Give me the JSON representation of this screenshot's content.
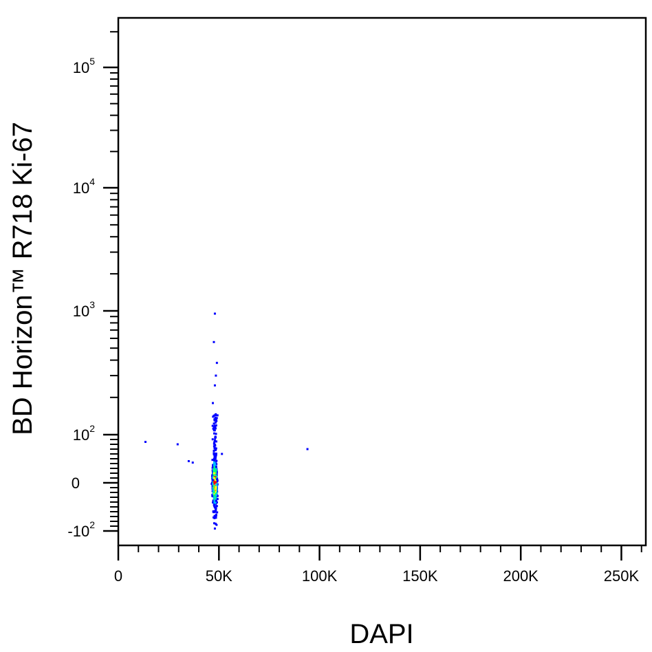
{
  "chart_data": {
    "type": "scatter",
    "xlabel": "DAPI",
    "ylabel": "BD Horizon™ R718  Ki-67",
    "x_scale": "linear",
    "y_scale": "biexponential",
    "xlim": [
      0,
      262144
    ],
    "ylim": [
      -150,
      262144
    ],
    "x_ticks": [
      {
        "value": 0,
        "label": "0"
      },
      {
        "value": 50000,
        "label": "50K"
      },
      {
        "value": 100000,
        "label": "100K"
      },
      {
        "value": 150000,
        "label": "150K"
      },
      {
        "value": 200000,
        "label": "200K"
      },
      {
        "value": 250000,
        "label": "250K"
      }
    ],
    "y_ticks": [
      {
        "value": -100,
        "base": "-10",
        "exp": "2"
      },
      {
        "value": 0,
        "base": "0",
        "exp": ""
      },
      {
        "value": 100,
        "base": "10",
        "exp": "2"
      },
      {
        "value": 1000,
        "base": "10",
        "exp": "3"
      },
      {
        "value": 10000,
        "base": "10",
        "exp": "4"
      },
      {
        "value": 100000,
        "base": "10",
        "exp": "5"
      }
    ],
    "population": {
      "description_color_scale": "density (blue low → red high)",
      "x_center": 48000,
      "x_spread": 1200,
      "y_center": 0,
      "y_range": [
        -90,
        150
      ]
    },
    "outliers": [
      {
        "x": 48000,
        "y": 950
      },
      {
        "x": 47500,
        "y": 560
      },
      {
        "x": 49000,
        "y": 380
      },
      {
        "x": 48500,
        "y": 300
      },
      {
        "x": 48000,
        "y": 250
      },
      {
        "x": 47000,
        "y": 180
      },
      {
        "x": 13500,
        "y": 85
      },
      {
        "x": 29500,
        "y": 80
      },
      {
        "x": 35000,
        "y": 45
      },
      {
        "x": 37000,
        "y": 42
      },
      {
        "x": 94000,
        "y": 70
      },
      {
        "x": 51500,
        "y": 60
      },
      {
        "x": 48000,
        "y": -95
      }
    ],
    "colors": {
      "low": "#0000ff",
      "mid_low": "#00c0ff",
      "mid": "#00ff80",
      "mid_high": "#ffff00",
      "high": "#ff0000"
    },
    "grid": false
  }
}
